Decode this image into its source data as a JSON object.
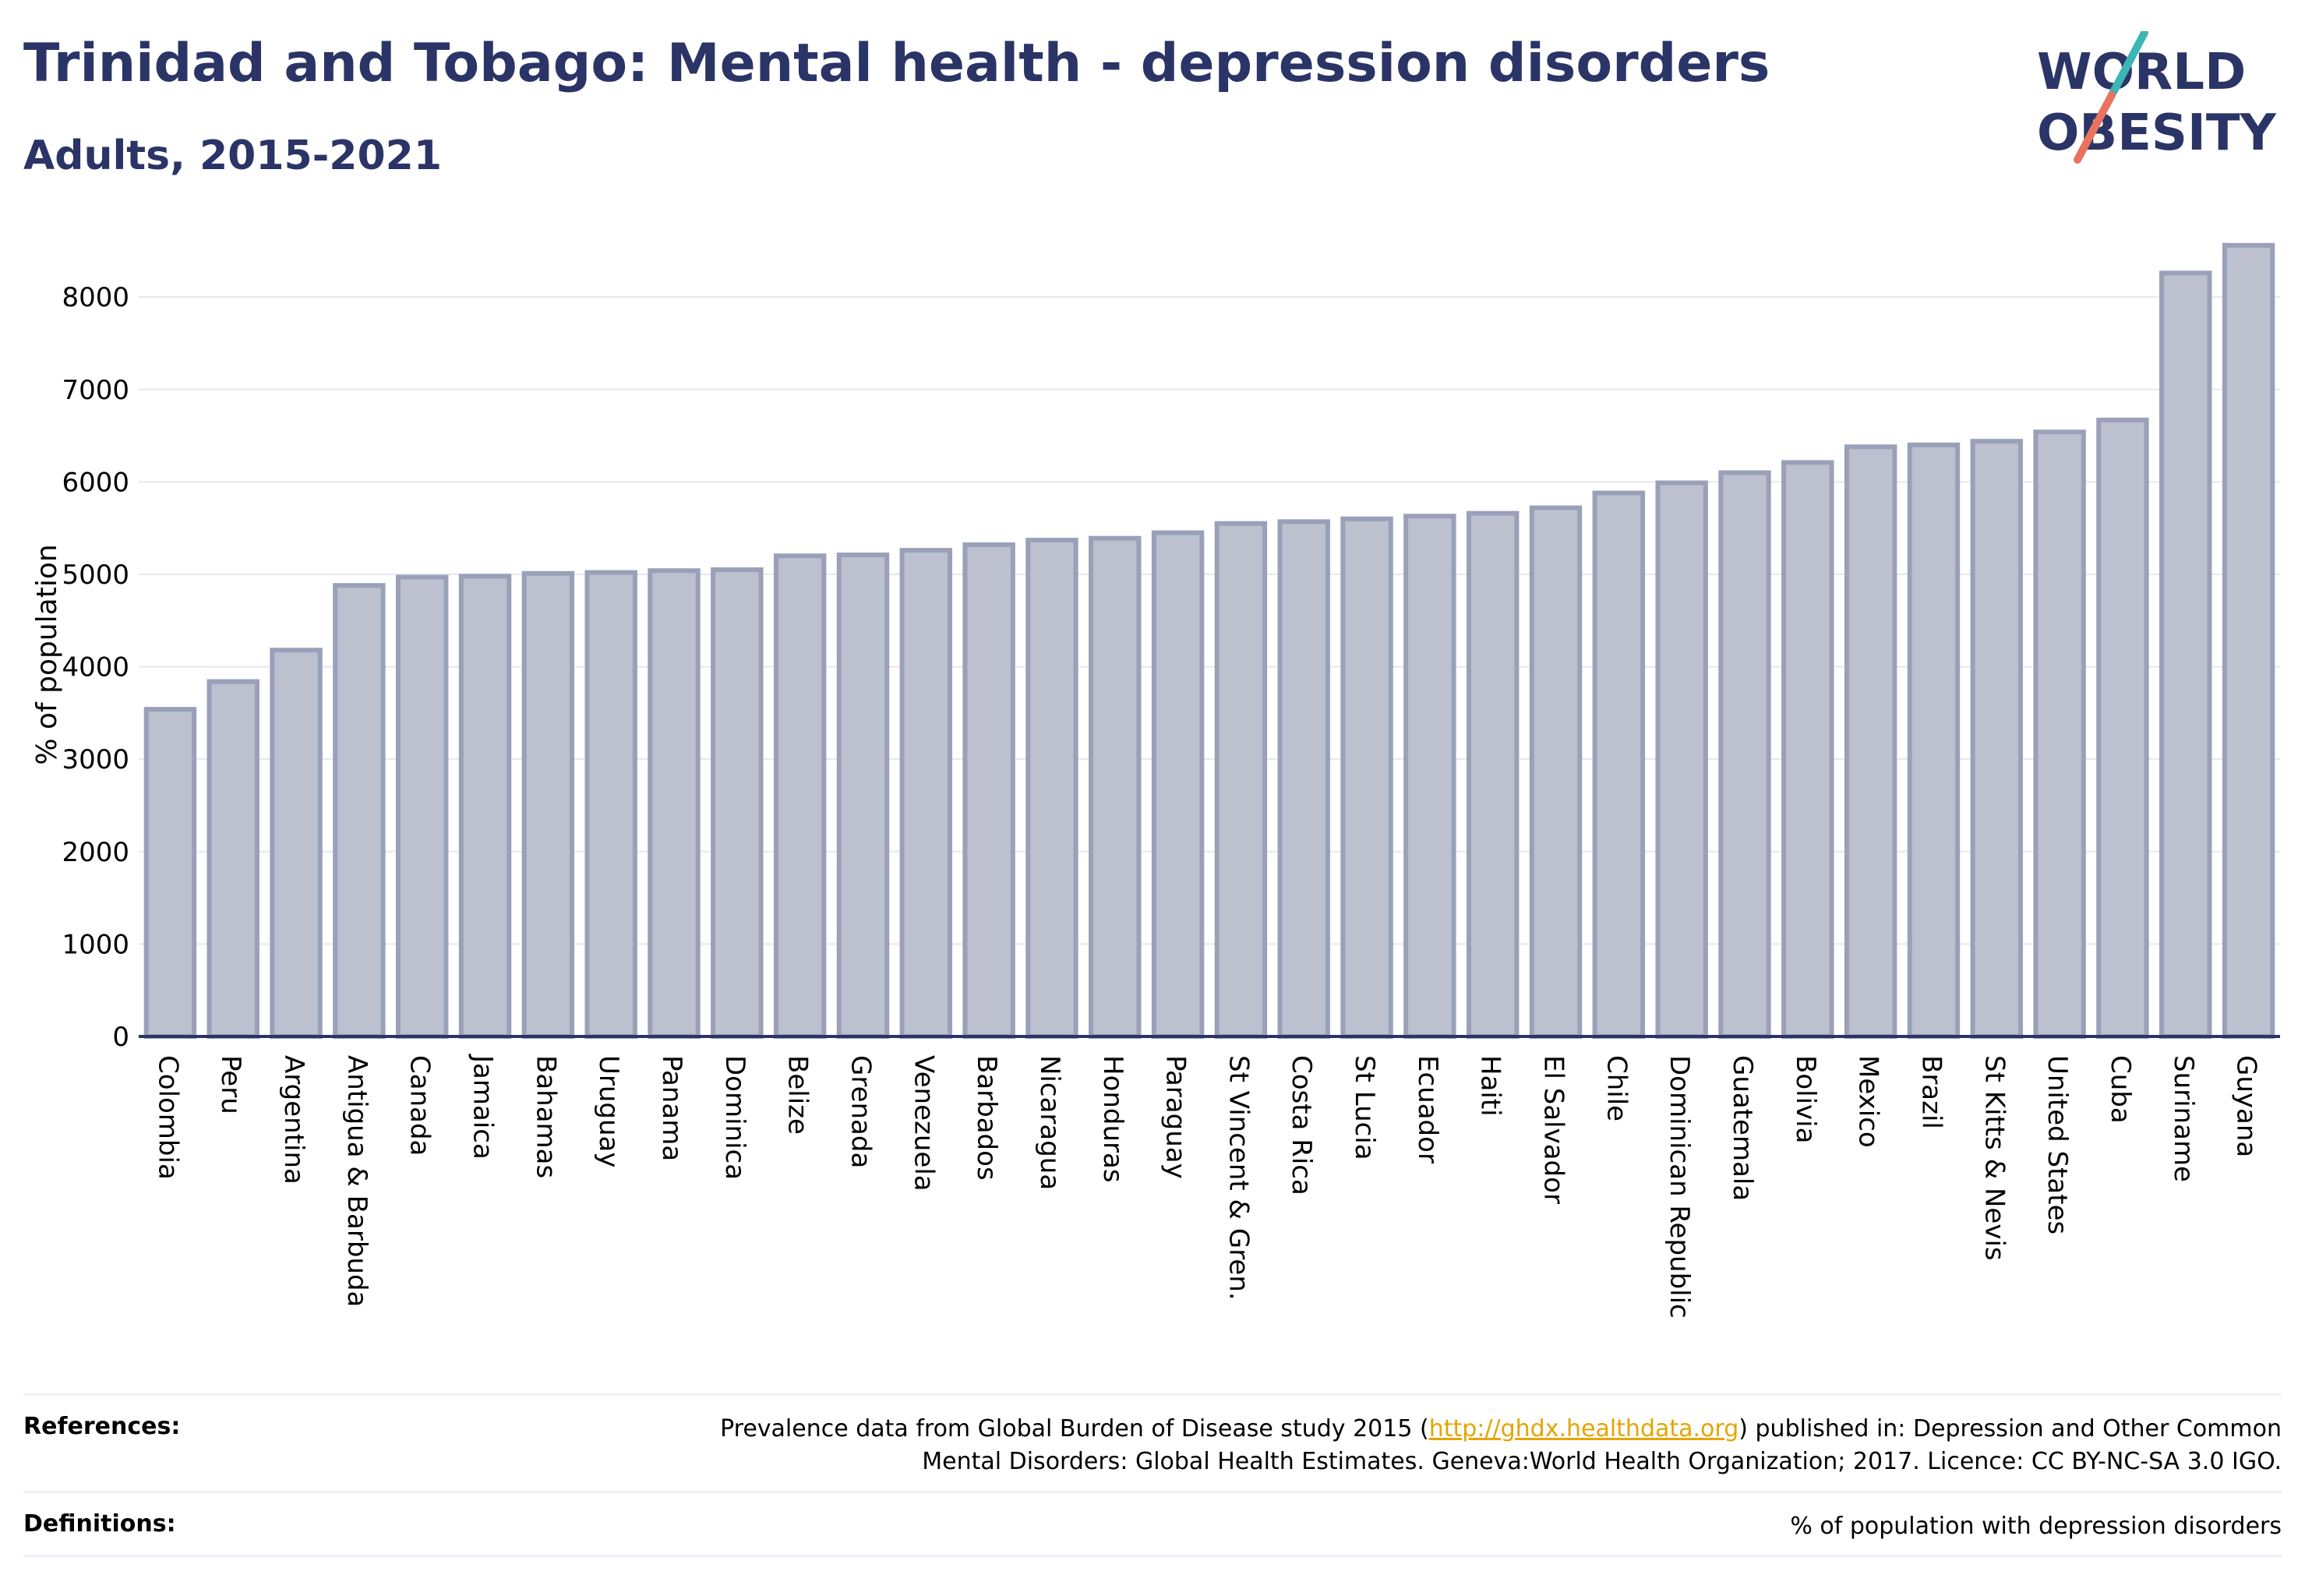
{
  "header": {
    "title": "Trinidad and Tobago: Mental health - depression disorders",
    "subtitle": "Adults, 2015-2021"
  },
  "logo": {
    "line1": "WORLD",
    "line2": "OBESITY",
    "color": "#2b3466",
    "accent_teal": "#3bb6b4",
    "accent_coral": "#e8735f"
  },
  "chart_data": {
    "type": "bar",
    "ylabel": "% of population",
    "xlabel": "",
    "ylim": [
      0,
      8600
    ],
    "yticks": [
      0,
      1000,
      2000,
      3000,
      4000,
      5000,
      6000,
      7000,
      8000
    ],
    "grid": true,
    "bar_color": "#bcc0cf",
    "bar_edge_color": "#9aa0b8",
    "categories": [
      "Colombia",
      "Peru",
      "Argentina",
      "Antigua & Barbuda",
      "Canada",
      "Jamaica",
      "Bahamas",
      "Uruguay",
      "Panama",
      "Dominica",
      "Belize",
      "Grenada",
      "Venezuela",
      "Barbados",
      "Nicaragua",
      "Honduras",
      "Paraguay",
      "St Vincent & Gren.",
      "Costa Rica",
      "St Lucia",
      "Ecuador",
      "Haiti",
      "El Salvador",
      "Chile",
      "Dominican Republic",
      "Guatemala",
      "Bolivia",
      "Mexico",
      "Brazil",
      "St Kitts & Nevis",
      "United States",
      "Cuba",
      "Suriname",
      "Guyana"
    ],
    "values": [
      3540,
      3840,
      4180,
      4880,
      4970,
      4980,
      5010,
      5020,
      5040,
      5050,
      5200,
      5210,
      5260,
      5320,
      5370,
      5390,
      5450,
      5550,
      5570,
      5600,
      5630,
      5660,
      5720,
      5880,
      5990,
      6100,
      6210,
      6380,
      6400,
      6440,
      6540,
      6670,
      8260,
      8560
    ]
  },
  "footer": {
    "references_label": "References:",
    "references_pre": "Prevalence data from Global Burden of Disease study 2015 (",
    "references_link": "http://ghdx.healthdata.org",
    "references_post": ") published in: Depression and Other Common",
    "references_line2": "Mental Disorders: Global Health Estimates. Geneva:World Health Organization; 2017. Licence: CC BY-NC-SA 3.0 IGO.",
    "definitions_label": "Definitions:",
    "definitions_text": "% of population with depression disorders"
  }
}
